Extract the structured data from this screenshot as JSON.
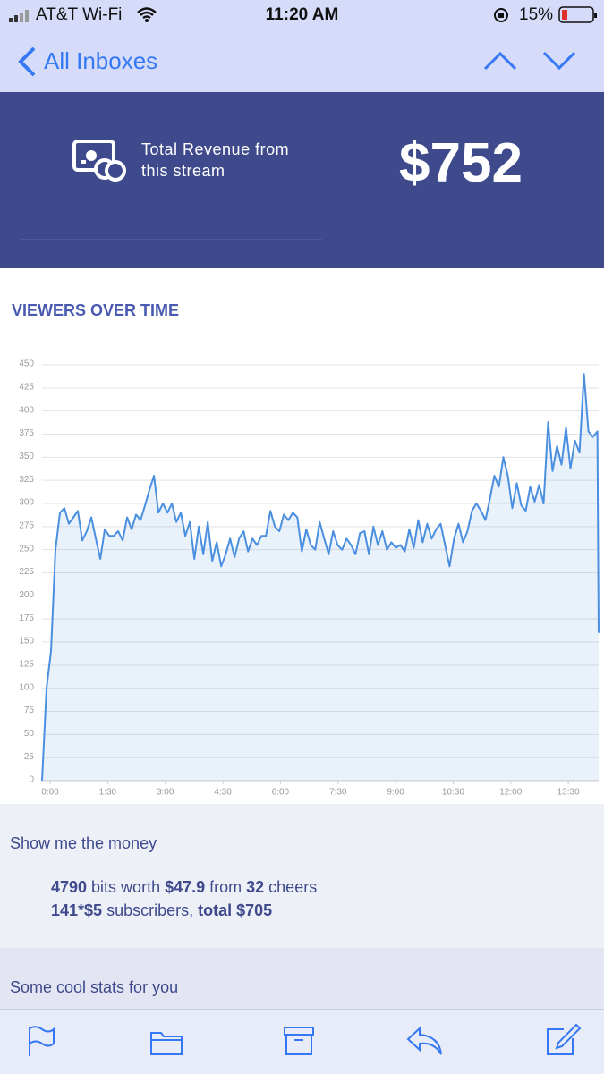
{
  "status": {
    "carrier": "AT&T Wi-Fi",
    "time": "11:20 AM",
    "battery": "15%"
  },
  "nav": {
    "back": "All Inboxes"
  },
  "revenue": {
    "label": [
      "Total Revenue from",
      "this stream"
    ],
    "amount": "$752"
  },
  "viewers_heading": "VIEWERS OVER TIME",
  "chart_data": {
    "type": "line",
    "x": [
      0,
      7,
      14,
      21,
      28,
      35,
      42,
      49,
      56,
      63,
      70,
      77,
      84,
      91,
      98,
      105,
      112,
      119,
      126,
      133,
      140,
      147,
      154,
      161,
      168,
      175,
      182,
      189,
      196,
      203,
      210,
      217,
      224,
      231,
      238,
      245,
      252,
      259,
      266,
      273,
      280,
      287,
      294,
      301,
      308,
      315,
      322,
      329,
      336,
      343,
      350,
      357,
      364,
      371,
      378,
      385,
      392,
      399,
      406,
      413,
      420,
      427,
      434,
      441,
      448,
      455,
      462,
      469,
      476,
      483,
      490,
      497,
      504,
      511,
      518,
      525,
      532,
      539,
      546,
      553,
      560,
      567,
      574,
      581,
      588,
      595,
      602,
      609,
      616,
      623,
      630,
      637,
      644,
      651,
      658,
      665,
      672,
      679,
      686,
      693,
      700,
      707,
      714,
      721,
      728,
      735,
      742,
      749,
      756,
      763,
      770,
      777,
      784,
      791,
      798,
      805,
      812,
      819,
      826,
      833,
      840,
      847,
      854,
      861,
      868,
      870
    ],
    "series": [
      {
        "color": "#4a8fe0",
        "values": [
          0,
          100,
          140,
          250,
          290,
          295,
          278,
          285,
          292,
          260,
          270,
          285,
          262,
          240,
          272,
          265,
          265,
          270,
          260,
          285,
          272,
          288,
          282,
          298,
          315,
          330,
          290,
          300,
          290,
          300,
          280,
          290,
          265,
          280,
          240,
          275,
          245,
          280,
          238,
          258,
          232,
          245,
          262,
          242,
          262,
          270,
          248,
          262,
          255,
          265,
          265,
          292,
          275,
          270,
          288,
          282,
          290,
          285,
          248,
          272,
          255,
          250,
          280,
          262,
          245,
          270,
          255,
          250,
          262,
          255,
          245,
          268,
          270,
          245,
          275,
          255,
          270,
          250,
          258,
          252,
          255,
          248,
          272,
          252,
          282,
          258,
          278,
          262,
          272,
          278,
          255,
          232,
          262,
          278,
          258,
          270,
          292,
          300,
          292,
          282,
          305,
          330,
          318,
          350,
          330,
          295,
          322,
          298,
          292,
          318,
          302,
          320,
          300,
          388,
          335,
          362,
          342,
          382,
          338,
          368,
          355,
          440,
          378,
          372,
          378,
          160
        ]
      }
    ],
    "xlim": [
      0,
      870
    ],
    "xticks": [
      {
        "value": 0,
        "label": "0:00"
      },
      {
        "value": 90,
        "label": "1:30"
      },
      {
        "value": 180,
        "label": "3:00"
      },
      {
        "value": 270,
        "label": "4:30"
      },
      {
        "value": 360,
        "label": "6:00"
      },
      {
        "value": 450,
        "label": "7:30"
      },
      {
        "value": 540,
        "label": "9:00"
      },
      {
        "value": 630,
        "label": "10:30"
      },
      {
        "value": 720,
        "label": "12:00"
      },
      {
        "value": 810,
        "label": "13:30"
      }
    ],
    "ylim": [
      0,
      450
    ],
    "yticks": [
      0,
      25,
      50,
      75,
      100,
      125,
      150,
      175,
      200,
      225,
      250,
      275,
      300,
      325,
      350,
      375,
      400,
      425,
      450
    ],
    "grid": true,
    "area": true
  },
  "money": {
    "heading": "Show me the money",
    "lines": [
      [
        {
          "text": "4790",
          "bold": true
        },
        {
          "text": " bits worth "
        },
        {
          "text": "$47.9",
          "bold": true
        },
        {
          "text": " from "
        },
        {
          "text": "32",
          "bold": true
        },
        {
          "text": " cheers"
        }
      ],
      [
        {
          "text": "141*$5",
          "bold": true
        },
        {
          "text": " subscribers, "
        },
        {
          "text": "total $705",
          "bold": true
        }
      ]
    ]
  },
  "stats_heading": "Some cool stats for you"
}
